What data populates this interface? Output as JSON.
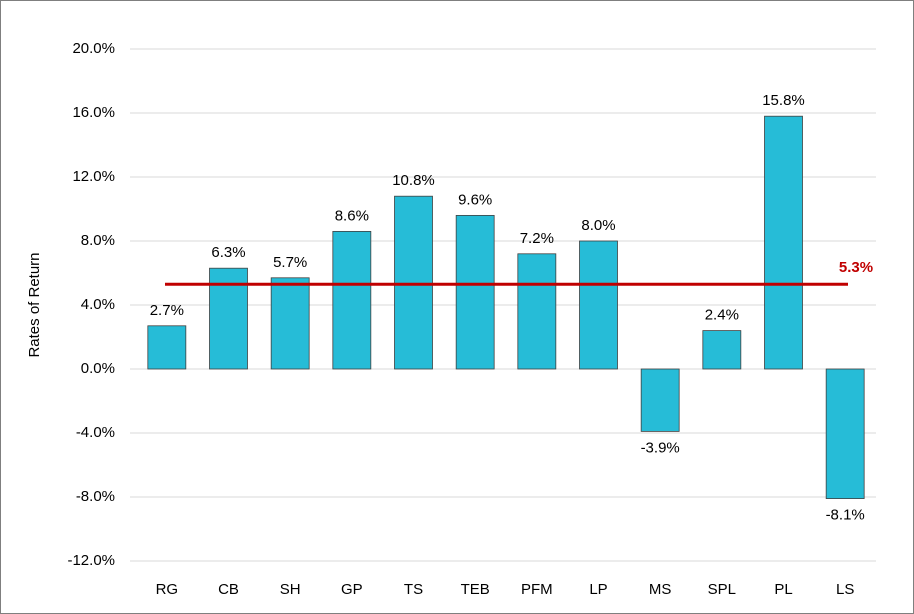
{
  "chart_data": {
    "type": "bar",
    "y_label": "Rates of Return",
    "categories": [
      "RG",
      "CB",
      "SH",
      "GP",
      "TS",
      "TEB",
      "PFM",
      "LP",
      "MS",
      "SPL",
      "PL",
      "LS"
    ],
    "values": [
      2.7,
      6.3,
      5.7,
      8.6,
      10.8,
      9.6,
      7.2,
      8.0,
      -3.9,
      2.4,
      15.8,
      -8.1
    ],
    "value_labels": [
      "2.7%",
      "6.3%",
      "5.7%",
      "8.6%",
      "10.8%",
      "9.6%",
      "7.2%",
      "8.0%",
      "-3.9%",
      "2.4%",
      "15.8%",
      "-8.1%"
    ],
    "color": "#26bcd7",
    "ylim": [
      -12,
      20
    ],
    "yticks": [
      {
        "value": -12,
        "label": "-12.0%"
      },
      {
        "value": -8,
        "label": "-8.0%"
      },
      {
        "value": -4,
        "label": "-4.0%"
      },
      {
        "value": 0,
        "label": "0.0%"
      },
      {
        "value": 4,
        "label": "4.0%"
      },
      {
        "value": 8,
        "label": "8.0%"
      },
      {
        "value": 12,
        "label": "12.0%"
      },
      {
        "value": 16,
        "label": "16.0%"
      },
      {
        "value": 20,
        "label": "20.0%"
      }
    ],
    "grid": true,
    "reference_line": {
      "value": 5.3,
      "label": "5.3%",
      "color": "#c00000"
    }
  }
}
